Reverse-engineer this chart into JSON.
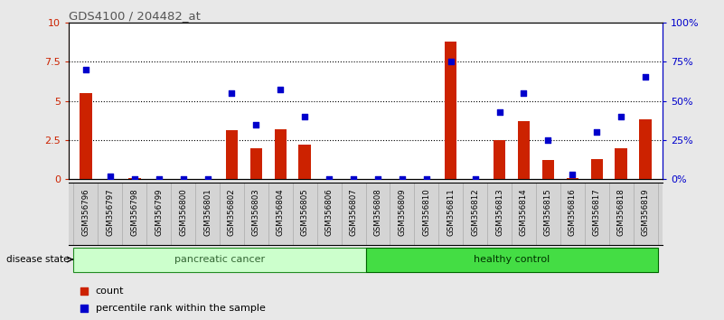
{
  "title": "GDS4100 / 204482_at",
  "samples": [
    "GSM356796",
    "GSM356797",
    "GSM356798",
    "GSM356799",
    "GSM356800",
    "GSM356801",
    "GSM356802",
    "GSM356803",
    "GSM356804",
    "GSM356805",
    "GSM356806",
    "GSM356807",
    "GSM356808",
    "GSM356809",
    "GSM356810",
    "GSM356811",
    "GSM356812",
    "GSM356813",
    "GSM356814",
    "GSM356815",
    "GSM356816",
    "GSM356817",
    "GSM356818",
    "GSM356819"
  ],
  "counts": [
    5.5,
    0.0,
    0.1,
    0.0,
    0.0,
    0.0,
    3.1,
    2.0,
    3.2,
    2.2,
    0.0,
    0.0,
    0.0,
    0.0,
    0.0,
    8.8,
    0.0,
    2.5,
    3.7,
    1.2,
    0.05,
    1.3,
    2.0,
    3.8
  ],
  "percentiles": [
    70,
    2,
    0,
    0,
    0,
    0,
    55,
    35,
    57,
    40,
    0,
    0,
    0,
    0,
    0,
    75,
    0,
    43,
    55,
    25,
    3,
    30,
    40,
    65
  ],
  "disease_state": [
    "pancreatic cancer",
    "pancreatic cancer",
    "pancreatic cancer",
    "pancreatic cancer",
    "pancreatic cancer",
    "pancreatic cancer",
    "pancreatic cancer",
    "pancreatic cancer",
    "pancreatic cancer",
    "pancreatic cancer",
    "pancreatic cancer",
    "pancreatic cancer",
    "healthy control",
    "healthy control",
    "healthy control",
    "healthy control",
    "healthy control",
    "healthy control",
    "healthy control",
    "healthy control",
    "healthy control",
    "healthy control",
    "healthy control",
    "healthy control"
  ],
  "bar_color": "#cc2200",
  "dot_color": "#0000cc",
  "ylim_left": [
    0,
    10
  ],
  "ylim_right": [
    0,
    100
  ],
  "yticks_left": [
    0,
    2.5,
    5.0,
    7.5,
    10
  ],
  "yticks_right": [
    0,
    25,
    50,
    75,
    100
  ],
  "ytick_labels_left": [
    "0",
    "2.5",
    "5",
    "7.5",
    "10"
  ],
  "ytick_labels_right": [
    "0%",
    "25%",
    "50%",
    "75%",
    "100%"
  ],
  "disease_state_label": "disease state",
  "legend_count_label": "count",
  "legend_pct_label": "percentile rank within the sample",
  "background_color": "#e8e8e8",
  "plot_bg_color": "#ffffff",
  "pc_color": "#ccffcc",
  "hc_color": "#44dd44",
  "pc_border": "#228B22",
  "hc_border": "#006600",
  "pc_text_color": "#336633",
  "hc_text_color": "#003300",
  "xtick_bg": "#d4d4d4",
  "title_color": "#555555"
}
